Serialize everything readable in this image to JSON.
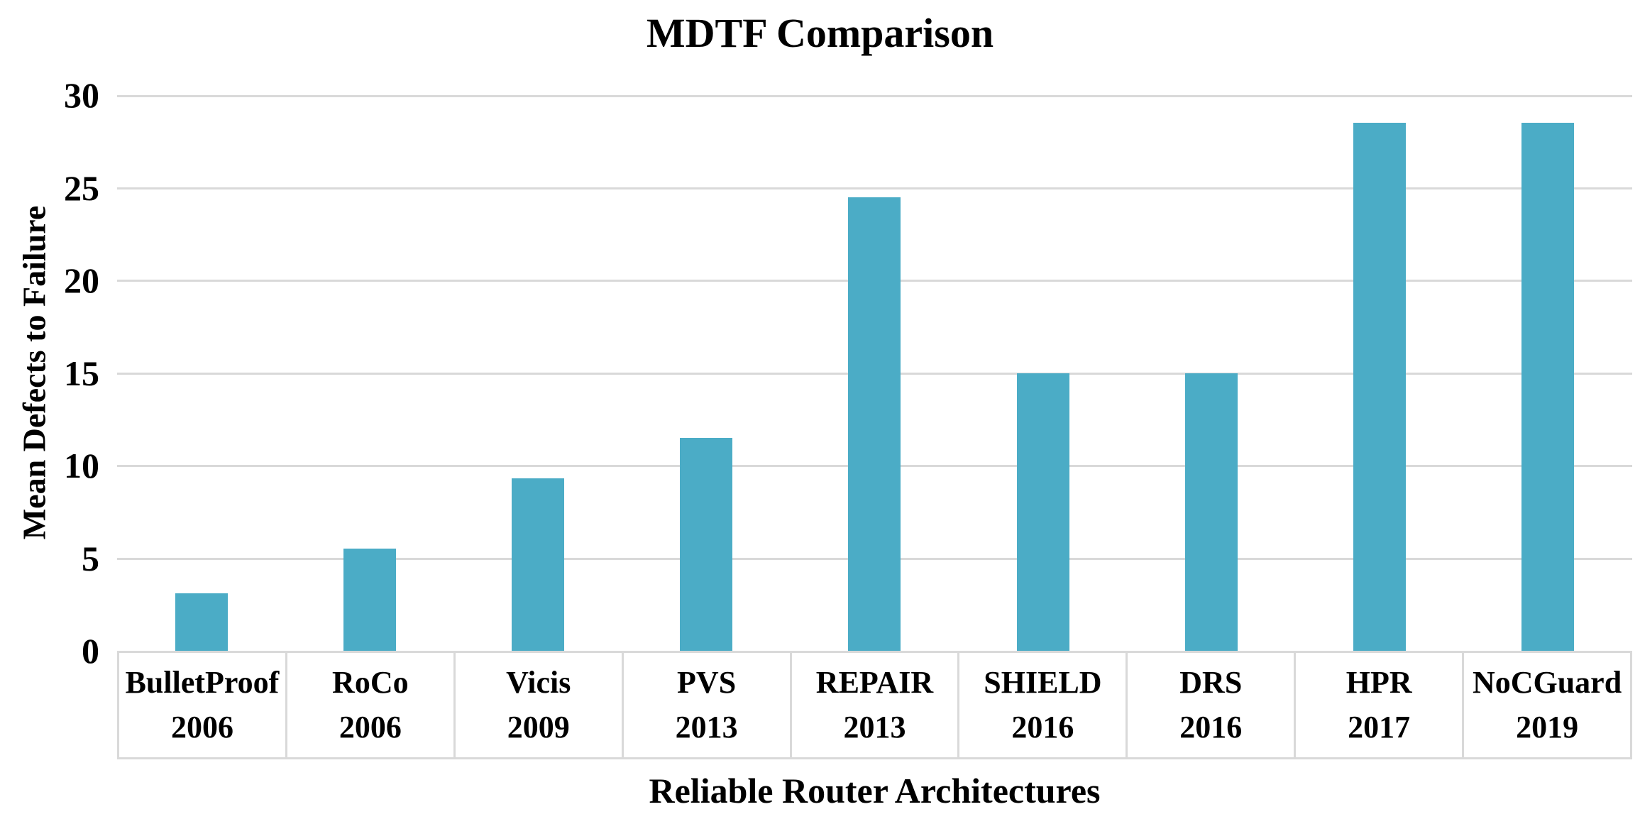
{
  "chart_data": {
    "type": "bar",
    "title": "MDTF Comparison",
    "xlabel": "Reliable Router Architectures",
    "ylabel": "Mean Defects to Failure",
    "categories": [
      {
        "name": "BulletProof",
        "year": "2006"
      },
      {
        "name": "RoCo",
        "year": "2006"
      },
      {
        "name": "Vicis",
        "year": "2009"
      },
      {
        "name": "PVS",
        "year": "2013"
      },
      {
        "name": "REPAIR",
        "year": "2013"
      },
      {
        "name": "SHIELD",
        "year": "2016"
      },
      {
        "name": "DRS",
        "year": "2016"
      },
      {
        "name": "HPR",
        "year": "2017"
      },
      {
        "name": "NoCGuard",
        "year": "2019"
      }
    ],
    "values": [
      3.1,
      5.5,
      9.3,
      11.5,
      24.5,
      15,
      15,
      28.5,
      28.5
    ],
    "ylim": [
      0,
      30
    ],
    "yticks": [
      0,
      5,
      10,
      15,
      20,
      25,
      30
    ],
    "grid": true,
    "legend": "none",
    "colors": {
      "bar": "#4BACC6",
      "gridline": "#D9D9D9",
      "axis_box_border": "#D9D9D9",
      "text": "#000000",
      "background": "#FFFFFF"
    }
  }
}
